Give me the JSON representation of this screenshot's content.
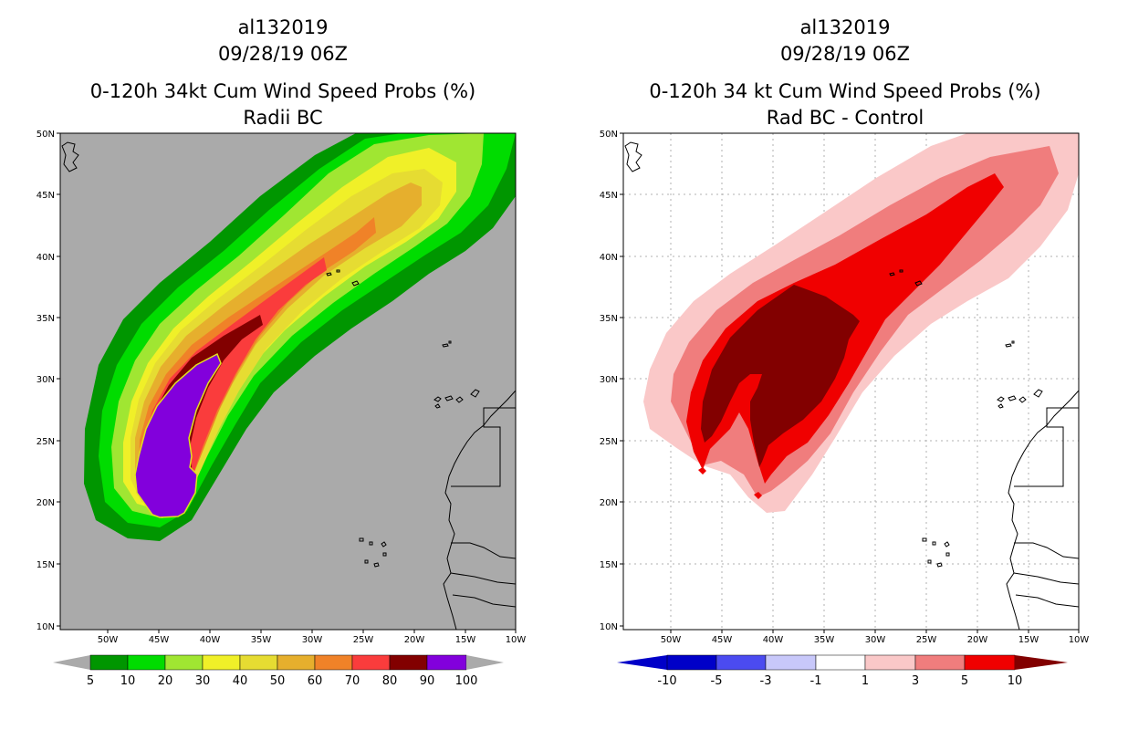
{
  "left_panel": {
    "storm_id": "al132019",
    "datetime": "09/28/19 06Z",
    "product": "0-120h 34kt Cum Wind Speed Probs (%)",
    "subtitle": "Radii BC"
  },
  "right_panel": {
    "storm_id": "al132019",
    "datetime": "09/28/19 06Z",
    "product": "0-120h 34 kt Cum Wind Speed Probs (%)",
    "subtitle": "Rad BC - Control"
  },
  "axes": {
    "lat_labels": [
      "50N",
      "45N",
      "40N",
      "35N",
      "30N",
      "25N",
      "20N",
      "15N",
      "10N"
    ],
    "lon_labels": [
      "50W",
      "45W",
      "40W",
      "35W",
      "30W",
      "25W",
      "20W",
      "15W",
      "10W"
    ]
  },
  "colors": {
    "background_left": "#aaaaaa",
    "background_right": "#ffffff",
    "prob_levels": [
      "#009600",
      "#00dc00",
      "#a0e632",
      "#f0f028",
      "#e6dc32",
      "#e6af2d",
      "#f08228",
      "#fa3c3c",
      "#820000",
      "#8200dc"
    ],
    "diff_levels": [
      "#0000c8",
      "#4b4bf0",
      "#7d7df0",
      "#c8c8fa",
      "#ffffff",
      "#fac8c8",
      "#f07d7d",
      "#f00000",
      "#820000"
    ]
  },
  "left_colorbar": {
    "labels": [
      "5",
      "10",
      "20",
      "30",
      "40",
      "50",
      "60",
      "70",
      "80",
      "90",
      "100"
    ]
  },
  "right_colorbar": {
    "labels": [
      "-10",
      "-5",
      "-3",
      "-1",
      "1",
      "3",
      "5",
      "10"
    ]
  }
}
